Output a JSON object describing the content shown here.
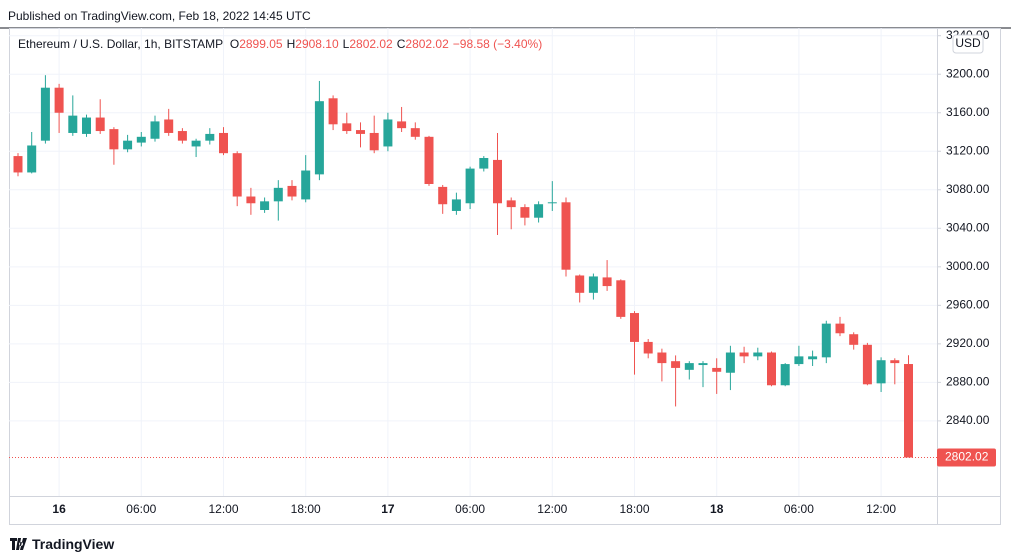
{
  "header": {
    "published": "Published on TradingView.com, Feb 18, 2022 14:45 UTC",
    "symbol": "Ethereum / U.S. Dollar, 1h, BITSTAMP",
    "ohlc": [
      {
        "key": "O",
        "value": "2899.05"
      },
      {
        "key": "H",
        "value": "2908.10"
      },
      {
        "key": "L",
        "value": "2802.02"
      },
      {
        "key": "C",
        "value": "2802.02"
      }
    ],
    "change": "−98.58 (−3.40%)"
  },
  "footer": {
    "brand": "TradingView"
  },
  "chart_data": {
    "type": "candlestick",
    "currency": "USD",
    "up_color": "#26a69a",
    "down_color": "#ef5350",
    "grid": true,
    "categories": [
      null,
      null,
      null,
      "16",
      null,
      null,
      null,
      null,
      null,
      "06:00",
      null,
      null,
      null,
      null,
      null,
      "12:00",
      null,
      null,
      null,
      null,
      null,
      "18:00",
      null,
      null,
      null,
      null,
      null,
      "17",
      null,
      null,
      null,
      null,
      null,
      "06:00",
      null,
      null,
      null,
      null,
      null,
      "12:00",
      null,
      null,
      null,
      null,
      null,
      "18:00",
      null,
      null,
      null,
      null,
      null,
      "18",
      null,
      null,
      null,
      null,
      null,
      "06:00",
      null,
      null,
      null,
      null,
      null,
      "12:00",
      null,
      null
    ],
    "open": [
      3115,
      3098,
      3131,
      3186,
      3139,
      3138,
      3155,
      3143,
      3122,
      3129,
      3133,
      3153,
      3141,
      3125,
      3131,
      3139,
      3118,
      3073,
      3059,
      3068,
      3084,
      3070,
      3096,
      3175,
      3149,
      3142,
      3139,
      3125,
      3151,
      3144,
      3135,
      3083,
      3058,
      3066,
      3102,
      3111,
      3069,
      3062,
      3051,
      3066,
      3067,
      2991,
      2973,
      2989,
      2986,
      2952,
      2922,
      2911,
      2902,
      2893,
      2898,
      2895,
      2890,
      2911,
      2907,
      2911,
      2877,
      2899,
      2904,
      2906,
      2941,
      2930,
      2919,
      2879,
      2903,
      2899.05
    ],
    "high": [
      3118,
      3140,
      3199,
      3190,
      3178,
      3158,
      3174,
      3145,
      3137,
      3140,
      3157,
      3164,
      3144,
      3133,
      3144,
      3145,
      3120,
      3082,
      3072,
      3090,
      3090,
      3116,
      3193,
      3178,
      3160,
      3150,
      3157,
      3160,
      3166,
      3150,
      3136,
      3085,
      3077,
      3104,
      3115,
      3139,
      3072,
      3065,
      3068,
      3089,
      3072,
      2992,
      2993,
      3007,
      2987,
      2954,
      2925,
      2915,
      2908,
      2902,
      2902,
      2905,
      2918,
      2917,
      2916,
      2912,
      2900,
      2918,
      2913,
      2944,
      2948,
      2932,
      2921,
      2906,
      2905,
      2908.1
    ],
    "low": [
      3094,
      3097,
      3128,
      3139,
      3136,
      3135,
      3138,
      3106,
      3119,
      3125,
      3130,
      3136,
      3128,
      3114,
      3127,
      3116,
      3063,
      3054,
      3056,
      3048,
      3069,
      3067,
      3090,
      3142,
      3138,
      3124,
      3118,
      3120,
      3140,
      3132,
      3084,
      3055,
      3054,
      3060,
      3099,
      3033,
      3039,
      3043,
      3046,
      3058,
      2990,
      2963,
      2966,
      2975,
      2946,
      2888,
      2905,
      2881,
      2855,
      2883,
      2875,
      2868,
      2872,
      2900,
      2903,
      2876,
      2876,
      2897,
      2897,
      2900,
      2928,
      2914,
      2877,
      2870,
      2878,
      2802.02
    ],
    "close": [
      3098,
      3126,
      3186,
      3160,
      3157,
      3155,
      3141,
      3122,
      3131,
      3135,
      3151,
      3139,
      3131,
      3131,
      3138,
      3118,
      3073,
      3066,
      3068,
      3082,
      3073,
      3100,
      3172,
      3148,
      3141,
      3138,
      3121,
      3153,
      3144,
      3135,
      3086,
      3065,
      3070,
      3102,
      3113,
      3066,
      3062,
      3051,
      3065,
      3067,
      2997,
      2973,
      2990,
      2980,
      2948,
      2922,
      2910,
      2900,
      2895,
      2900,
      2900,
      2891,
      2911,
      2907,
      2911,
      2877,
      2899,
      2907,
      2907,
      2941,
      2931,
      2919,
      2878,
      2903,
      2900,
      2802.02
    ],
    "last_price": 2802.02,
    "ylim": [
      2762,
      3248
    ],
    "yticks": [
      {
        "value": 2840,
        "label": "2840.00"
      },
      {
        "value": 2880,
        "label": "2880.00"
      },
      {
        "value": 2920,
        "label": "2920.00"
      },
      {
        "value": 2960,
        "label": "2960.00"
      },
      {
        "value": 3000,
        "label": "3000.00"
      },
      {
        "value": 3040,
        "label": "3040.00"
      },
      {
        "value": 3080,
        "label": "3080.00"
      },
      {
        "value": 3120,
        "label": "3120.00"
      },
      {
        "value": 3160,
        "label": "3160.00"
      },
      {
        "value": 3200,
        "label": "3200.00"
      },
      {
        "value": 3240,
        "label": "3240.00"
      }
    ]
  }
}
